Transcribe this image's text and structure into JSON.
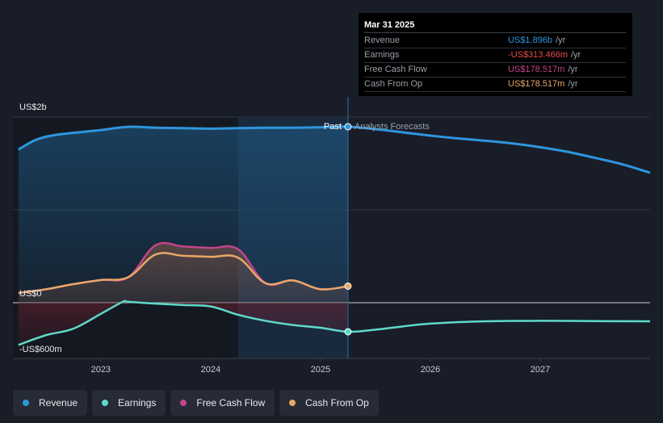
{
  "colors": {
    "revenue": "#2f95dd",
    "earnings": "#5fd9c9",
    "free_cash_flow": "#c4458a",
    "cash_from_op": "#e8a868",
    "background": "#181d28",
    "forecast_band": "#1a3a55"
  },
  "tooltip": {
    "date": "Mar 31 2025",
    "rows": [
      {
        "label": "Revenue",
        "value": "US$1.896b",
        "unit": "/yr",
        "color": "#2f95dd"
      },
      {
        "label": "Earnings",
        "value": "-US$313.466m",
        "unit": "/yr",
        "color": "#e84c4c"
      },
      {
        "label": "Free Cash Flow",
        "value": "US$178.517m",
        "unit": "/yr",
        "color": "#c4458a"
      },
      {
        "label": "Cash From Op",
        "value": "US$178.517m",
        "unit": "/yr",
        "color": "#e8a868"
      }
    ]
  },
  "chart_data": {
    "type": "line",
    "title": "",
    "xlabel": "",
    "ylabel": "",
    "y_tick_labels": [
      "US$2b",
      "US$0",
      "-US$600m"
    ],
    "ylim": [
      -600,
      2000
    ],
    "xlim": [
      2022.2,
      2028.0
    ],
    "x_ticks": [
      2023,
      2024,
      2025,
      2026,
      2027
    ],
    "x_tick_labels": [
      "2023",
      "2024",
      "2025",
      "2026",
      "2027"
    ],
    "divider_x": 2025.25,
    "past_label": "Past",
    "forecast_label": "Analysts Forecasts",
    "grid": true,
    "series": [
      {
        "name": "Revenue",
        "color_key": "revenue",
        "x": [
          2022.25,
          2022.4,
          2022.55,
          2022.75,
          2023.0,
          2023.25,
          2023.5,
          2023.75,
          2024.0,
          2024.25,
          2024.5,
          2024.75,
          2025.0,
          2025.25,
          2025.5,
          2025.75,
          2026.0,
          2026.25,
          2026.5,
          2026.75,
          2027.0,
          2027.25,
          2027.5,
          2027.75,
          2028.0
        ],
        "y": [
          1650,
          1750,
          1800,
          1830,
          1860,
          1895,
          1885,
          1880,
          1875,
          1880,
          1885,
          1885,
          1890,
          1896,
          1870,
          1835,
          1800,
          1770,
          1745,
          1715,
          1675,
          1625,
          1560,
          1490,
          1400
        ]
      },
      {
        "name": "Earnings",
        "color_key": "earnings",
        "x": [
          2022.25,
          2022.5,
          2022.75,
          2023.0,
          2023.2,
          2023.25,
          2023.5,
          2023.75,
          2024.0,
          2024.25,
          2024.5,
          2024.75,
          2025.0,
          2025.25,
          2025.5,
          2025.75,
          2026.0,
          2026.5,
          2027.0,
          2027.5,
          2028.0
        ],
        "y": [
          -455,
          -350,
          -280,
          -120,
          10,
          10,
          -10,
          -25,
          -40,
          -130,
          -195,
          -240,
          -270,
          -313,
          -290,
          -255,
          -225,
          -200,
          -195,
          -198,
          -200
        ]
      },
      {
        "name": "Free Cash Flow",
        "color_key": "free_cash_flow",
        "x": [
          2022.25,
          2022.5,
          2022.75,
          2023.0,
          2023.25,
          2023.5,
          2023.75,
          2024.0,
          2024.25,
          2024.5,
          2024.75,
          2025.0,
          2025.25
        ],
        "y": [
          105,
          145,
          200,
          245,
          275,
          620,
          605,
          590,
          575,
          210,
          240,
          145,
          178.517
        ]
      },
      {
        "name": "Cash From Op",
        "color_key": "cash_from_op",
        "x": [
          2022.25,
          2022.5,
          2022.75,
          2023.0,
          2023.25,
          2023.5,
          2023.75,
          2024.0,
          2024.25,
          2024.5,
          2024.75,
          2025.0,
          2025.25
        ],
        "y": [
          105,
          145,
          200,
          245,
          275,
          520,
          505,
          495,
          485,
          210,
          240,
          145,
          178.517
        ]
      }
    ]
  },
  "legend": [
    {
      "label": "Revenue",
      "color": "#2f95dd"
    },
    {
      "label": "Earnings",
      "color": "#5fd9c9"
    },
    {
      "label": "Free Cash Flow",
      "color": "#c4458a"
    },
    {
      "label": "Cash From Op",
      "color": "#e8a868"
    }
  ]
}
